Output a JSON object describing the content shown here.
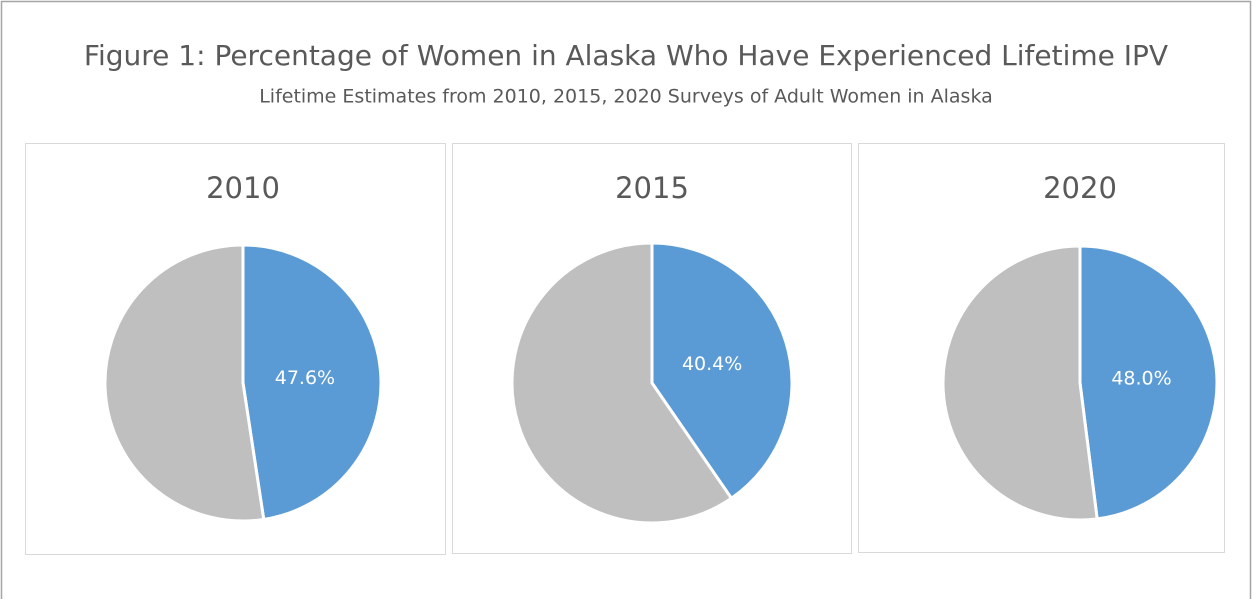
{
  "title": "Figure 1: Percentage of Women in Alaska Who Have Experienced Lifetime IPV",
  "subtitle": "Lifetime Estimates from 2010, 2015, 2020 Surveys of Adult Women in Alaska",
  "chart_data": [
    {
      "type": "pie",
      "title": "2010",
      "values": [
        47.6,
        52.4
      ],
      "value_labels": [
        "47.6%",
        null
      ],
      "colors": [
        "#5b9bd5",
        "#bfbfbf"
      ]
    },
    {
      "type": "pie",
      "title": "2015",
      "values": [
        40.4,
        59.6
      ],
      "value_labels": [
        "40.4%",
        null
      ],
      "colors": [
        "#5b9bd5",
        "#bfbfbf"
      ]
    },
    {
      "type": "pie",
      "title": "2020",
      "values": [
        48.0,
        52.0
      ],
      "value_labels": [
        "48.0%",
        null
      ],
      "colors": [
        "#5b9bd5",
        "#bfbfbf"
      ]
    }
  ]
}
